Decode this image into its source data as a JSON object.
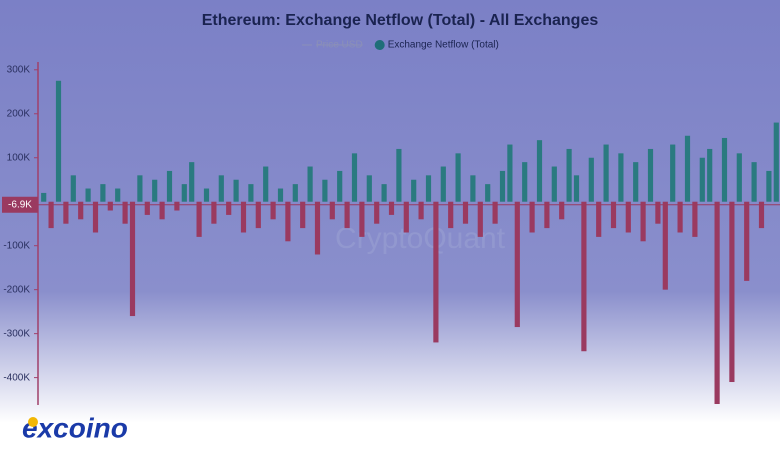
{
  "chart_data": {
    "type": "bar",
    "title": "Ethereum: Exchange Netflow (Total) - All Exchanges",
    "legend": [
      {
        "name": "Price USD",
        "hidden": true,
        "color": "#8a8fb8"
      },
      {
        "name": "Exchange Netflow (Total)",
        "color": "#1f6e78"
      }
    ],
    "watermark": "CryptoQuant",
    "positive_color": "#2a7a80",
    "negative_color": "#9a3a60",
    "values": [
      20000,
      -60000,
      275000,
      -50000,
      60000,
      -40000,
      30000,
      -70000,
      40000,
      -20000,
      30000,
      -50000,
      -260000,
      60000,
      -30000,
      50000,
      -40000,
      70000,
      -20000,
      40000,
      90000,
      -80000,
      30000,
      -50000,
      60000,
      -30000,
      50000,
      -70000,
      40000,
      -60000,
      80000,
      -40000,
      30000,
      -90000,
      40000,
      -60000,
      80000,
      -120000,
      50000,
      -40000,
      70000,
      -60000,
      110000,
      -80000,
      60000,
      -50000,
      40000,
      -30000,
      120000,
      -70000,
      50000,
      -40000,
      60000,
      -320000,
      80000,
      -60000,
      110000,
      -50000,
      60000,
      -80000,
      40000,
      -50000,
      70000,
      130000,
      -285000,
      90000,
      -70000,
      140000,
      -60000,
      80000,
      -40000,
      120000,
      60000,
      -340000,
      100000,
      -80000,
      130000,
      -60000,
      110000,
      -70000,
      90000,
      -90000,
      120000,
      -50000,
      -200000,
      130000,
      -70000,
      150000,
      -80000,
      100000,
      120000,
      -460000,
      145000,
      -410000,
      110000,
      -180000,
      90000,
      -60000,
      70000,
      180000
    ],
    "ylim": [
      -460000,
      320000
    ],
    "yticks": [
      {
        "value": 300000,
        "label": "300K"
      },
      {
        "value": 200000,
        "label": "200K"
      },
      {
        "value": 100000,
        "label": "100K"
      },
      {
        "value": -100000,
        "label": "-100K"
      },
      {
        "value": -200000,
        "label": "-200K"
      },
      {
        "value": -300000,
        "label": "-300K"
      },
      {
        "value": -400000,
        "label": "-400K"
      }
    ],
    "current": {
      "value": -6900,
      "label": "-6.9K"
    }
  },
  "logo": "excoino"
}
